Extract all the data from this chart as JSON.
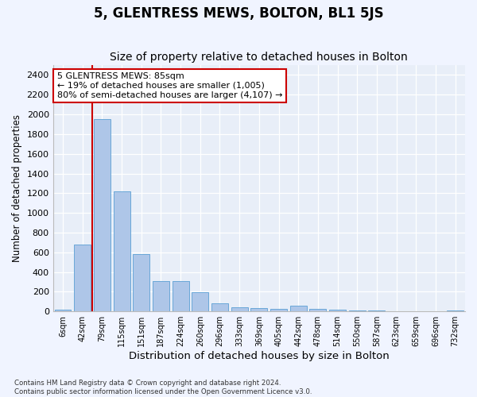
{
  "title": "5, GLENTRESS MEWS, BOLTON, BL1 5JS",
  "subtitle": "Size of property relative to detached houses in Bolton",
  "xlabel": "Distribution of detached houses by size in Bolton",
  "ylabel": "Number of detached properties",
  "categories": [
    "6sqm",
    "42sqm",
    "79sqm",
    "115sqm",
    "151sqm",
    "187sqm",
    "224sqm",
    "260sqm",
    "296sqm",
    "333sqm",
    "369sqm",
    "405sqm",
    "442sqm",
    "478sqm",
    "514sqm",
    "550sqm",
    "587sqm",
    "623sqm",
    "659sqm",
    "696sqm",
    "732sqm"
  ],
  "values": [
    15,
    675,
    1950,
    1220,
    580,
    310,
    310,
    195,
    80,
    45,
    35,
    25,
    60,
    25,
    15,
    10,
    10,
    5,
    5,
    5,
    10
  ],
  "bar_color": "#aec6e8",
  "bar_edge_color": "#5a9fd4",
  "property_line_color": "#cc0000",
  "annotation_line1": "5 GLENTRESS MEWS: 85sqm",
  "annotation_line2": "← 19% of detached houses are smaller (1,005)",
  "annotation_line3": "80% of semi-detached houses are larger (4,107) →",
  "annotation_box_color": "#cc0000",
  "ylim": [
    0,
    2500
  ],
  "yticks": [
    0,
    200,
    400,
    600,
    800,
    1000,
    1200,
    1400,
    1600,
    1800,
    2000,
    2200,
    2400
  ],
  "background_color": "#e8eef8",
  "grid_color": "#ffffff",
  "footer_text": "Contains HM Land Registry data © Crown copyright and database right 2024.\nContains public sector information licensed under the Open Government Licence v3.0.",
  "title_fontsize": 12,
  "subtitle_fontsize": 10,
  "xlabel_fontsize": 9.5,
  "ylabel_fontsize": 8.5,
  "property_bin_index": 2
}
